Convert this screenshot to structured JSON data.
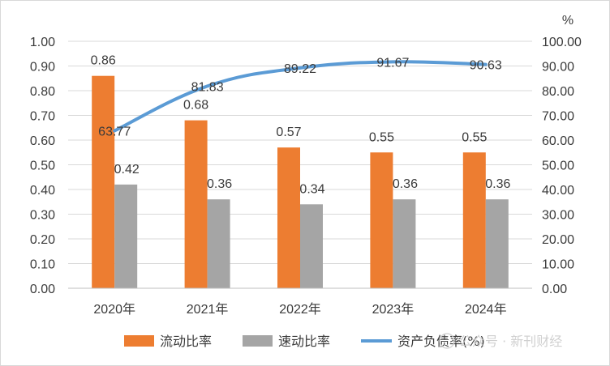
{
  "chart_data": {
    "type": "bar",
    "categories": [
      "2020年",
      "2021年",
      "2022年",
      "2023年",
      "2024年"
    ],
    "series": [
      {
        "name": "流动比率",
        "kind": "bar",
        "axis": "left",
        "color": "#ED7D31",
        "values": [
          0.86,
          0.68,
          0.57,
          0.55,
          0.55
        ]
      },
      {
        "name": "速动比率",
        "kind": "bar",
        "axis": "left",
        "color": "#A5A5A5",
        "values": [
          0.42,
          0.36,
          0.34,
          0.36,
          0.36
        ]
      },
      {
        "name": "资产负债率(%)",
        "kind": "line",
        "axis": "right",
        "color": "#5B9BD5",
        "values": [
          63.77,
          81.83,
          89.22,
          91.67,
          90.63
        ]
      }
    ],
    "y_left": {
      "min": 0,
      "max": 1,
      "step": 0.1,
      "decimals": 2
    },
    "y_right": {
      "min": 0,
      "max": 100,
      "step": 10,
      "decimals": 2,
      "unit": "%"
    },
    "grid": true,
    "legend": "bottom",
    "watermark": "公众号 · 新刊财经"
  }
}
